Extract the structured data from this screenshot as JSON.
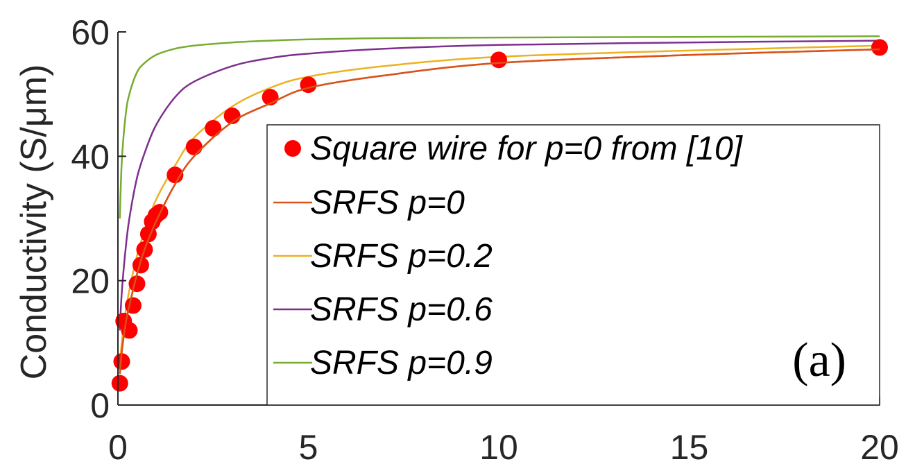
{
  "chart_data": {
    "type": "line",
    "title": "",
    "xlabel": "",
    "ylabel": "Conductivity (S/μm)",
    "xlim": [
      0,
      20
    ],
    "ylim": [
      0,
      60
    ],
    "xticks": [
      0,
      5,
      10,
      15,
      20
    ],
    "yticks": [
      0,
      20,
      40,
      60
    ],
    "xtick_labels": [
      "0",
      "5",
      "10",
      "15",
      "20"
    ],
    "ytick_labels": [
      "0",
      "20",
      "40",
      "60"
    ],
    "grid": false,
    "legend_position": "inside-right",
    "annotation": "(a)",
    "series": [
      {
        "name": "Square wire for p=0 from [10]",
        "kind": "scatter",
        "color": "#ff0000",
        "x": [
          0.05,
          0.1,
          0.15,
          0.3,
          0.4,
          0.5,
          0.6,
          0.7,
          0.8,
          0.9,
          1.0,
          1.1,
          1.5,
          2.0,
          2.5,
          3.0,
          4.0,
          5.0,
          10.0,
          20.0
        ],
        "y": [
          3.5,
          7.0,
          13.5,
          12.0,
          16.0,
          19.5,
          22.5,
          25.0,
          27.5,
          29.5,
          30.5,
          31.0,
          37.0,
          41.5,
          44.5,
          46.5,
          49.5,
          51.5,
          55.5,
          57.5
        ]
      },
      {
        "name": "SRFS p=0",
        "kind": "line",
        "color": "#d95319",
        "x": [
          0.05,
          0.1,
          0.2,
          0.3,
          0.5,
          0.7,
          1.0,
          1.5,
          2.0,
          3.0,
          4.0,
          5.0,
          7.0,
          10.0,
          15.0,
          20.0
        ],
        "y": [
          5.0,
          8.5,
          13.0,
          16.0,
          21.0,
          25.0,
          29.5,
          35.5,
          40.0,
          45.5,
          48.5,
          51.0,
          53.0,
          55.0,
          56.3,
          57.2
        ]
      },
      {
        "name": "SRFS p=0.2",
        "kind": "line",
        "color": "#edb120",
        "x": [
          0.05,
          0.1,
          0.2,
          0.3,
          0.5,
          0.7,
          1.0,
          1.5,
          2.0,
          3.0,
          4.0,
          5.0,
          7.0,
          10.0,
          15.0,
          20.0
        ],
        "y": [
          6.0,
          10.0,
          15.0,
          18.5,
          24.0,
          28.0,
          33.0,
          38.5,
          43.0,
          48.0,
          51.0,
          52.8,
          54.5,
          56.0,
          57.0,
          57.8
        ]
      },
      {
        "name": "SRFS p=0.6",
        "kind": "line",
        "color": "#7e2f8e",
        "x": [
          0.05,
          0.1,
          0.2,
          0.3,
          0.5,
          0.7,
          1.0,
          1.5,
          2.0,
          3.0,
          4.0,
          5.0,
          7.0,
          10.0,
          15.0,
          20.0
        ],
        "y": [
          12.0,
          18.0,
          25.0,
          30.0,
          36.5,
          40.5,
          45.0,
          49.5,
          52.0,
          54.5,
          55.8,
          56.5,
          57.3,
          57.9,
          58.3,
          58.6
        ]
      },
      {
        "name": "SRFS p=0.9",
        "kind": "line",
        "color": "#77ac30",
        "x": [
          0.05,
          0.1,
          0.2,
          0.3,
          0.5,
          0.7,
          1.0,
          1.5,
          2.0,
          3.0,
          4.0,
          5.0,
          7.0,
          10.0,
          15.0,
          20.0
        ],
        "y": [
          30.0,
          39.0,
          46.5,
          50.0,
          53.5,
          55.0,
          56.3,
          57.3,
          57.8,
          58.3,
          58.6,
          58.8,
          59.0,
          59.1,
          59.2,
          59.3
        ]
      }
    ]
  }
}
